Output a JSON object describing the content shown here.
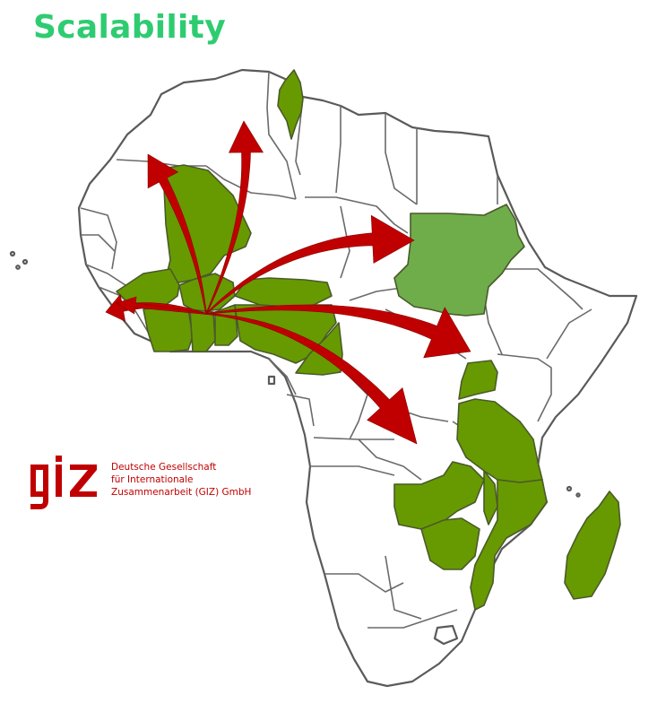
{
  "title": "Scalability",
  "colors": {
    "title": "#2ecc71",
    "focus_country": "#679a00",
    "secondary_country": "#6fad4b",
    "arrow": "#c00000",
    "logo": "#c00000"
  },
  "logo": {
    "mark": "giz",
    "lines": [
      "Deutsche Gesellschaft",
      "für Internationale",
      "Zusammenarbeit (GIZ) GmbH"
    ]
  },
  "map": {
    "region": "Africa",
    "highlighted_countries": [
      "Tunisia",
      "Mali",
      "Burkina Faso",
      "Niger",
      "Nigeria",
      "Ghana",
      "Côte d'Ivoire",
      "Benin",
      "Togo",
      "Sudan",
      "Uganda",
      "Tanzania",
      "Zambia",
      "Malawi",
      "Mozambique",
      "Zimbabwe",
      "Madagascar"
    ],
    "arrow_count": 7
  }
}
